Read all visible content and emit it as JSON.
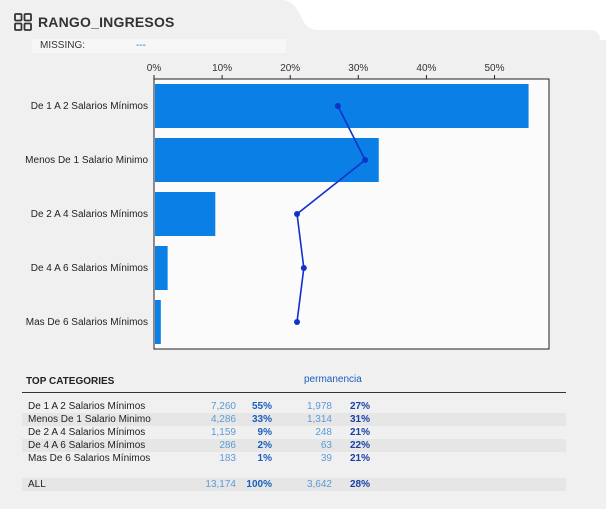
{
  "header": {
    "title": "RANGO_INGRESOS",
    "icon": "grid-icon"
  },
  "missing": {
    "label": "MISSING:",
    "value": "---"
  },
  "colors": {
    "bar": "#0a7fe6",
    "line": "#1032c8",
    "accent": "#1a5fbf"
  },
  "chart_data": {
    "type": "bar",
    "orientation": "horizontal",
    "categories": [
      "De 1 A 2 Salarios Mínimos",
      "Menos De 1 Salario Minimo",
      "De 2 A 4 Salarios Mínimos",
      "De 4 A 6 Salarios Mínimos",
      "Mas De 6 Salarios Mínimos"
    ],
    "series": [
      {
        "type": "bar",
        "values": [
          55,
          33,
          9,
          2,
          1
        ]
      },
      {
        "type": "line",
        "values": [
          27,
          31,
          21,
          22,
          21
        ]
      }
    ],
    "xticks": [
      "0%",
      "10%",
      "20%",
      "30%",
      "40%",
      "50%"
    ],
    "xlim": [
      0,
      58
    ],
    "grid": false
  },
  "table": {
    "title": "TOP CATEGORIES",
    "metric_label": "permanencia",
    "rows": [
      {
        "name": "De 1 A 2 Salarios Mínimos",
        "count": "7,260",
        "pct": "55%",
        "count2": "1,978",
        "rate": "27%"
      },
      {
        "name": "Menos De 1 Salario Minimo",
        "count": "4,286",
        "pct": "33%",
        "count2": "1,314",
        "rate": "31%"
      },
      {
        "name": "De 2 A 4 Salarios Mínimos",
        "count": "1,159",
        "pct": "9%",
        "count2": "248",
        "rate": "21%"
      },
      {
        "name": "De 4 A 6 Salarios Mínimos",
        "count": "286",
        "pct": "2%",
        "count2": "63",
        "rate": "22%"
      },
      {
        "name": "Mas De 6 Salarios Mínimos",
        "count": "183",
        "pct": "1%",
        "count2": "39",
        "rate": "21%"
      }
    ],
    "total": {
      "name": "ALL",
      "count": "13,174",
      "pct": "100%",
      "count2": "3,642",
      "rate": "28%"
    }
  }
}
